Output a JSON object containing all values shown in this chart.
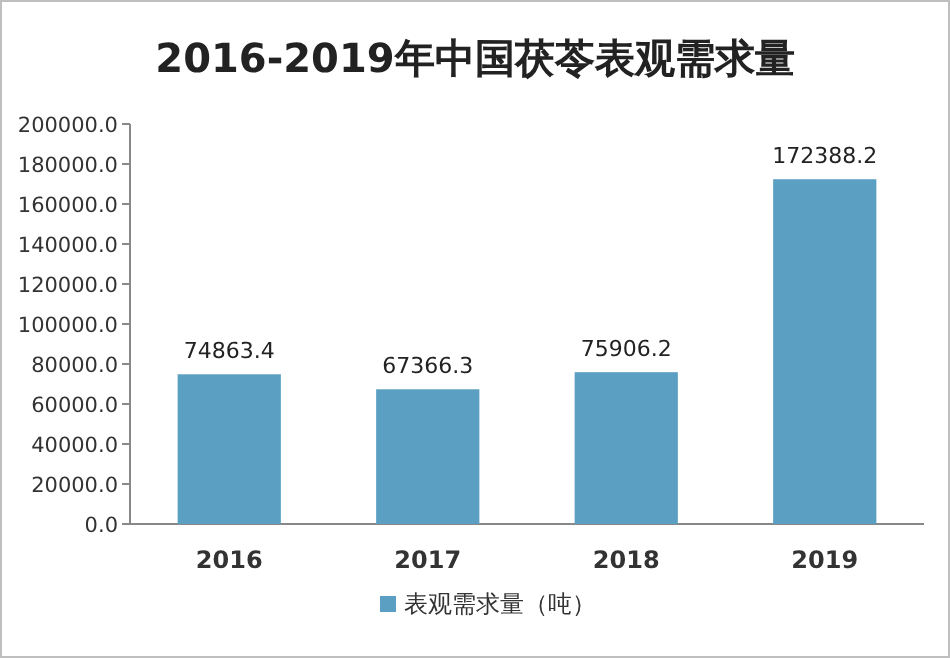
{
  "chart_data": {
    "type": "bar",
    "title": "2016-2019年中国茯苓表观需求量",
    "categories": [
      "2016",
      "2017",
      "2018",
      "2019"
    ],
    "series": [
      {
        "name": "表观需求量（吨）",
        "color": "#5b9fc2",
        "values": [
          74863.4,
          67366.3,
          75906.2,
          172388.2
        ]
      }
    ],
    "ylim": [
      0,
      200000
    ],
    "yticks": [
      {
        "value": 0,
        "label": "0.0"
      },
      {
        "value": 20000,
        "label": "20000.0"
      },
      {
        "value": 40000,
        "label": "40000.0"
      },
      {
        "value": 60000,
        "label": "60000.0"
      },
      {
        "value": 80000,
        "label": "80000.0"
      },
      {
        "value": 100000,
        "label": "100000.0"
      },
      {
        "value": 120000,
        "label": "120000.0"
      },
      {
        "value": 140000,
        "label": "140000.0"
      },
      {
        "value": 160000,
        "label": "160000.0"
      },
      {
        "value": 180000,
        "label": "180000.0"
      },
      {
        "value": 200000,
        "label": "200000.0"
      }
    ],
    "data_labels": true,
    "legend": "bottom",
    "grid": false
  }
}
